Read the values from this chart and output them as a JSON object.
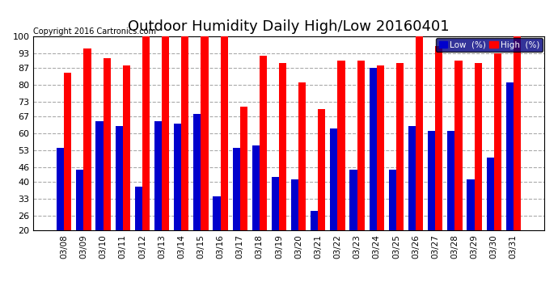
{
  "title": "Outdoor Humidity Daily High/Low 20160401",
  "copyright": "Copyright 2016 Cartronics.com",
  "categories": [
    "03/08",
    "03/09",
    "03/10",
    "03/11",
    "03/12",
    "03/13",
    "03/14",
    "03/15",
    "03/16",
    "03/17",
    "03/18",
    "03/19",
    "03/20",
    "03/21",
    "03/22",
    "03/23",
    "03/24",
    "03/25",
    "03/26",
    "03/27",
    "03/28",
    "03/29",
    "03/30",
    "03/31"
  ],
  "high_values": [
    85,
    95,
    91,
    88,
    100,
    100,
    100,
    100,
    100,
    71,
    92,
    89,
    81,
    70,
    90,
    90,
    88,
    89,
    100,
    96,
    90,
    89,
    93,
    100
  ],
  "low_values": [
    54,
    45,
    65,
    63,
    38,
    65,
    64,
    68,
    34,
    54,
    55,
    42,
    41,
    28,
    62,
    45,
    87,
    45,
    63,
    61,
    61,
    41,
    50,
    81
  ],
  "high_color": "#ff0000",
  "low_color": "#0000cc",
  "bg_color": "#ffffff",
  "grid_color": "#aaaaaa",
  "ymin": 20,
  "ymax": 100,
  "yticks": [
    20,
    26,
    33,
    40,
    46,
    53,
    60,
    67,
    73,
    80,
    87,
    93,
    100
  ],
  "title_fontsize": 13,
  "copyright_fontsize": 7,
  "legend_bg": "#000080",
  "bar_width": 0.38
}
